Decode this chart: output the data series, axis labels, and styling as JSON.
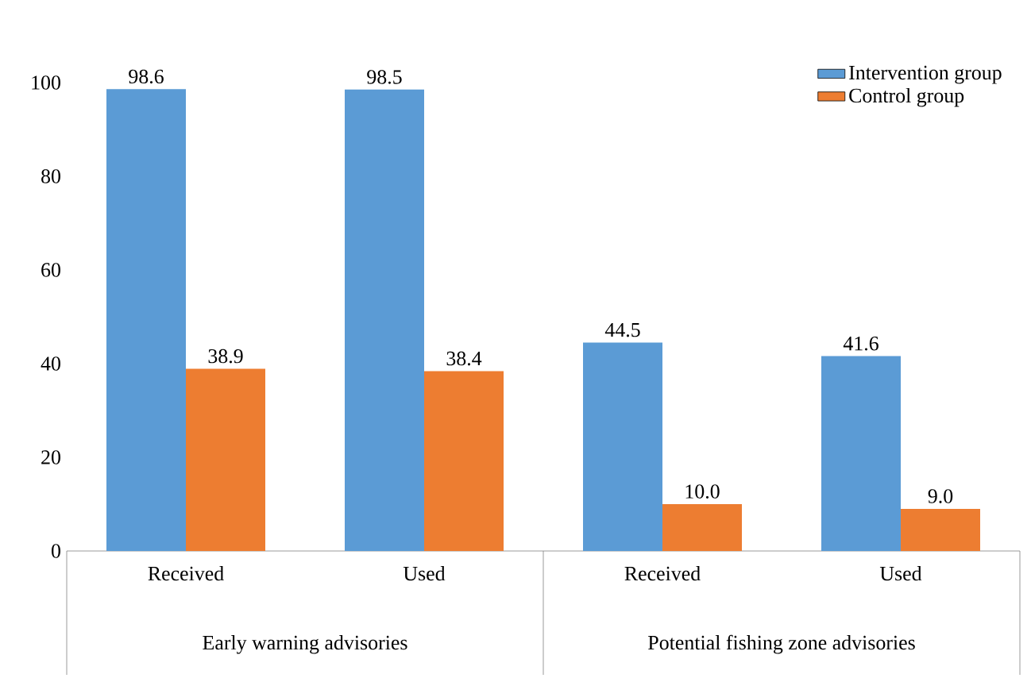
{
  "chart_data": {
    "type": "bar",
    "categories": [
      "Received",
      "Used",
      "Received",
      "Used"
    ],
    "series": [
      {
        "name": "Intervention group",
        "color": "#5b9bd5",
        "values": [
          98.6,
          98.5,
          44.5,
          41.6
        ],
        "value_labels": [
          "98.6",
          "98.5",
          "44.5",
          "41.6"
        ]
      },
      {
        "name": "Control group",
        "color": "#ed7d31",
        "values": [
          38.9,
          38.4,
          10.0,
          9.0
        ],
        "value_labels": [
          "38.9",
          "38.4",
          "10.0",
          "9.0"
        ]
      }
    ],
    "annotations": [
      "Early warning advisories",
      "Potential fishing zone advisories"
    ],
    "ylim": [
      0,
      100
    ],
    "yticks": [
      0,
      20,
      40,
      60,
      80,
      100
    ],
    "grid": false,
    "legend": "top right"
  }
}
